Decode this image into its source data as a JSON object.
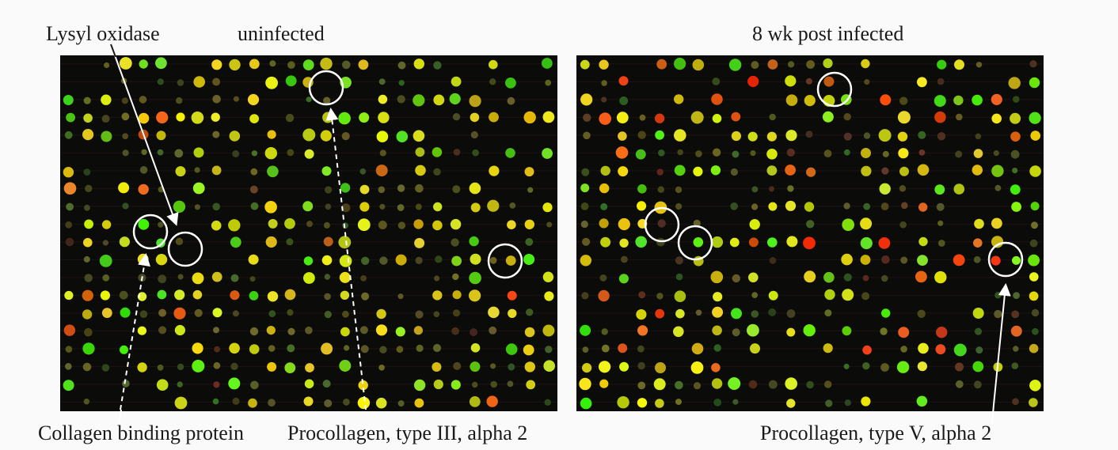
{
  "labels": {
    "lysyl_oxidase": "Lysyl oxidase",
    "uninfected": "uninfected",
    "post_infected": "8 wk post infected",
    "collagen_binding": "Collagen binding protein",
    "procollagen_iii": "Procollagen, type III, alpha 2",
    "procollagen_v": "Procollagen, type V, alpha 2"
  },
  "colors": {
    "background": "#fafafa",
    "array_background": "#0b0b09",
    "spot_yellow": "#e8e030",
    "spot_green": "#6fbf2a",
    "spot_red": "#d8402a",
    "spot_orange": "#e6a030",
    "marker": "#ffffff"
  }
}
